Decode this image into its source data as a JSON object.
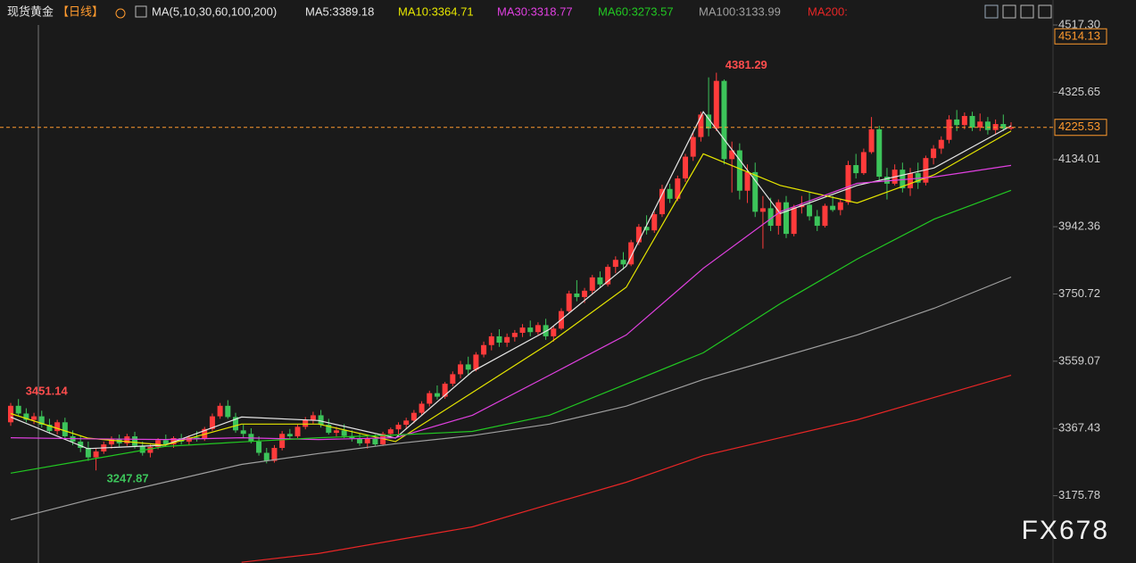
{
  "chart_data": {
    "type": "candlestick",
    "title": "现货黄金",
    "period": "【日线】",
    "indicator": "MA(5,10,30,60,100,200)",
    "watermark": "FX678",
    "up_color": "#ff3b3b",
    "down_color": "#3cc45a",
    "price_marker": 4514.13,
    "ylim": [
      2984,
      4517.3
    ],
    "yticks": [
      {
        "value": 4517.3,
        "label": "4517.30"
      },
      4325.65,
      4134.01,
      3942.36,
      3750.72,
      3559.07,
      3367.43,
      3175.78
    ],
    "ohlc": [
      [
        3385,
        3440,
        3375,
        3432
      ],
      [
        3432,
        3451.14,
        3405,
        3410
      ],
      [
        3410,
        3425,
        3385,
        3392
      ],
      [
        3392,
        3412,
        3380,
        3402
      ],
      [
        3402,
        3418,
        3370,
        3378
      ],
      [
        3378,
        3395,
        3352,
        3360
      ],
      [
        3360,
        3392,
        3350,
        3385
      ],
      [
        3385,
        3398,
        3338,
        3345
      ],
      [
        3345,
        3362,
        3320,
        3330
      ],
      [
        3330,
        3348,
        3300,
        3312
      ],
      [
        3312,
        3330,
        3275,
        3285
      ],
      [
        3285,
        3310,
        3247.87,
        3302
      ],
      [
        3302,
        3330,
        3295,
        3322
      ],
      [
        3322,
        3345,
        3310,
        3338
      ],
      [
        3338,
        3350,
        3315,
        3325
      ],
      [
        3325,
        3352,
        3318,
        3345
      ],
      [
        3345,
        3358,
        3310,
        3318
      ],
      [
        3318,
        3330,
        3290,
        3298
      ],
      [
        3298,
        3322,
        3285,
        3315
      ],
      [
        3315,
        3340,
        3308,
        3334
      ],
      [
        3334,
        3350,
        3315,
        3322
      ],
      [
        3322,
        3345,
        3312,
        3340
      ],
      [
        3340,
        3352,
        3322,
        3330
      ],
      [
        3330,
        3348,
        3320,
        3342
      ],
      [
        3342,
        3360,
        3330,
        3338
      ],
      [
        3338,
        3372,
        3332,
        3366
      ],
      [
        3366,
        3410,
        3360,
        3402
      ],
      [
        3402,
        3440,
        3395,
        3432
      ],
      [
        3432,
        3448,
        3395,
        3400
      ],
      [
        3400,
        3412,
        3355,
        3362
      ],
      [
        3362,
        3378,
        3340,
        3352
      ],
      [
        3352,
        3368,
        3325,
        3330
      ],
      [
        3330,
        3345,
        3290,
        3298
      ],
      [
        3298,
        3312,
        3268,
        3275
      ],
      [
        3275,
        3320,
        3270,
        3312
      ],
      [
        3312,
        3360,
        3305,
        3352
      ],
      [
        3352,
        3366,
        3338,
        3345
      ],
      [
        3345,
        3378,
        3340,
        3372
      ],
      [
        3372,
        3400,
        3365,
        3392
      ],
      [
        3392,
        3415,
        3380,
        3405
      ],
      [
        3405,
        3420,
        3370,
        3378
      ],
      [
        3378,
        3395,
        3350,
        3355
      ],
      [
        3355,
        3372,
        3345,
        3362
      ],
      [
        3362,
        3380,
        3340,
        3346
      ],
      [
        3346,
        3362,
        3330,
        3340
      ],
      [
        3340,
        3352,
        3318,
        3325
      ],
      [
        3325,
        3345,
        3310,
        3338
      ],
      [
        3338,
        3350,
        3318,
        3322
      ],
      [
        3322,
        3358,
        3318,
        3352
      ],
      [
        3352,
        3370,
        3342,
        3365
      ],
      [
        3365,
        3385,
        3350,
        3378
      ],
      [
        3378,
        3398,
        3365,
        3390
      ],
      [
        3390,
        3420,
        3382,
        3412
      ],
      [
        3412,
        3445,
        3405,
        3438
      ],
      [
        3438,
        3475,
        3430,
        3468
      ],
      [
        3468,
        3490,
        3450,
        3458
      ],
      [
        3458,
        3500,
        3452,
        3495
      ],
      [
        3495,
        3530,
        3488,
        3522
      ],
      [
        3522,
        3560,
        3510,
        3550
      ],
      [
        3550,
        3572,
        3520,
        3535
      ],
      [
        3535,
        3585,
        3530,
        3578
      ],
      [
        3578,
        3615,
        3570,
        3605
      ],
      [
        3605,
        3640,
        3590,
        3630
      ],
      [
        3630,
        3650,
        3600,
        3612
      ],
      [
        3612,
        3638,
        3600,
        3628
      ],
      [
        3628,
        3648,
        3615,
        3640
      ],
      [
        3640,
        3665,
        3628,
        3655
      ],
      [
        3655,
        3675,
        3630,
        3642
      ],
      [
        3642,
        3670,
        3635,
        3662
      ],
      [
        3662,
        3680,
        3620,
        3630
      ],
      [
        3630,
        3660,
        3615,
        3652
      ],
      [
        3652,
        3710,
        3648,
        3702
      ],
      [
        3702,
        3760,
        3695,
        3752
      ],
      [
        3752,
        3790,
        3730,
        3742
      ],
      [
        3742,
        3768,
        3725,
        3760
      ],
      [
        3760,
        3805,
        3752,
        3798
      ],
      [
        3798,
        3815,
        3770,
        3778
      ],
      [
        3778,
        3835,
        3772,
        3828
      ],
      [
        3828,
        3858,
        3810,
        3848
      ],
      [
        3848,
        3870,
        3820,
        3835
      ],
      [
        3835,
        3905,
        3830,
        3898
      ],
      [
        3898,
        3950,
        3890,
        3942
      ],
      [
        3942,
        3975,
        3920,
        3932
      ],
      [
        3932,
        3985,
        3925,
        3978
      ],
      [
        3978,
        4062,
        3970,
        4050
      ],
      [
        4050,
        4065,
        4010,
        4022
      ],
      [
        4022,
        4088,
        4015,
        4080
      ],
      [
        4080,
        4150,
        4070,
        4142
      ],
      [
        4142,
        4210,
        4130,
        4198
      ],
      [
        4198,
        4270,
        4185,
        4262
      ],
      [
        4262,
        4368,
        4200,
        4222
      ],
      [
        4222,
        4381.29,
        4215,
        4358
      ],
      [
        4358,
        4362,
        4120,
        4135
      ],
      [
        4135,
        4185,
        4040,
        4160
      ],
      [
        4160,
        4180,
        4020,
        4045
      ],
      [
        4045,
        4120,
        4010,
        4098
      ],
      [
        4098,
        4125,
        3970,
        3985
      ],
      [
        3985,
        4030,
        3880,
        3995
      ],
      [
        3995,
        4025,
        3930,
        3945
      ],
      [
        3945,
        4020,
        3920,
        4012
      ],
      [
        4012,
        4030,
        3910,
        3922
      ],
      [
        3922,
        4005,
        3915,
        3998
      ],
      [
        3998,
        4030,
        3980,
        4005
      ],
      [
        4005,
        4040,
        3960,
        3972
      ],
      [
        3972,
        3990,
        3930,
        3945
      ],
      [
        3945,
        4008,
        3940,
        4002
      ],
      [
        4002,
        4030,
        3985,
        3990
      ],
      [
        3990,
        4020,
        3975,
        4012
      ],
      [
        4012,
        4130,
        4005,
        4118
      ],
      [
        4118,
        4150,
        4080,
        4095
      ],
      [
        4095,
        4165,
        4090,
        4155
      ],
      [
        4155,
        4255,
        4150,
        4220
      ],
      [
        4220,
        4230,
        4070,
        4085
      ],
      [
        4085,
        4110,
        4020,
        4065
      ],
      [
        4065,
        4120,
        4060,
        4105
      ],
      [
        4105,
        4125,
        4040,
        4052
      ],
      [
        4052,
        4110,
        4030,
        4095
      ],
      [
        4095,
        4125,
        4050,
        4068
      ],
      [
        4068,
        4145,
        4060,
        4138
      ],
      [
        4138,
        4175,
        4120,
        4165
      ],
      [
        4165,
        4200,
        4150,
        4190
      ],
      [
        4190,
        4260,
        4180,
        4248
      ],
      [
        4248,
        4275,
        4215,
        4232
      ],
      [
        4232,
        4268,
        4220,
        4258
      ],
      [
        4258,
        4270,
        4215,
        4225
      ],
      [
        4225,
        4265,
        4215,
        4242
      ],
      [
        4242,
        4255,
        4205,
        4218
      ],
      [
        4218,
        4248,
        4205,
        4235
      ],
      [
        4235,
        4262,
        4215,
        4222
      ],
      [
        4222,
        4240,
        4218,
        4225.53
      ]
    ],
    "series": [
      {
        "name": "MA5:3389.18",
        "color": "#e6e6e6",
        "values": [
          3400,
          3310,
          3320,
          3400,
          3390,
          3340,
          3530,
          3650,
          3830,
          4270,
          3980,
          4060,
          4110,
          4230
        ]
      },
      {
        "name": "MA10:3364.71",
        "color": "#e6e600",
        "values": [
          3410,
          3340,
          3320,
          3380,
          3380,
          3330,
          3470,
          3610,
          3770,
          4150,
          4060,
          4010,
          4090,
          4215
        ]
      },
      {
        "name": "MA30:3318.77",
        "color": "#e040e0",
        "values": [
          3341,
          3338,
          3336,
          3341,
          3336,
          3341,
          3405,
          3519,
          3634,
          3824,
          3985,
          4066,
          4084,
          4117
        ]
      },
      {
        "name": "MA60:3273.57",
        "color": "#22c822",
        "values": [
          3240,
          3278,
          3316,
          3329,
          3341,
          3349,
          3359,
          3405,
          3494,
          3583,
          3723,
          3850,
          3964,
          4046
        ]
      },
      {
        "name": "MA100:3133.99",
        "color": "#a0a0a0",
        "values": [
          3107,
          3163,
          3214,
          3265,
          3296,
          3324,
          3347,
          3380,
          3431,
          3507,
          3570,
          3634,
          3710,
          3799
        ]
      },
      {
        "name": "MA200:",
        "color": "#e82626",
        "values": [
          null,
          null,
          null,
          2986,
          3011,
          3049,
          3087,
          3151,
          3214,
          3290,
          3341,
          3392,
          3456,
          3519
        ]
      }
    ]
  }
}
